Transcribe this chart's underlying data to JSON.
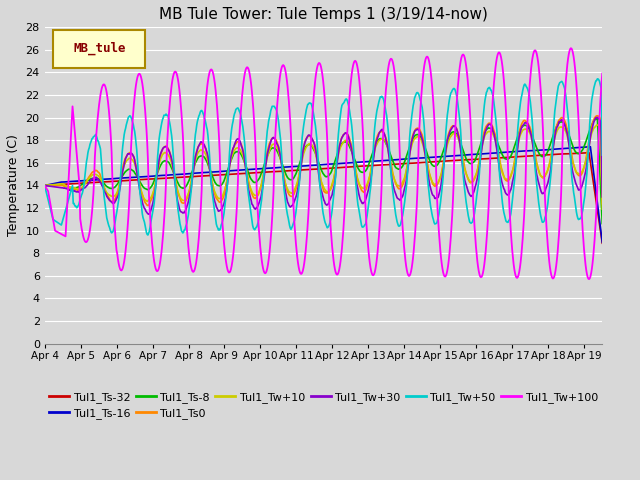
{
  "title": "MB Tule Tower: Tule Temps 1 (3/19/14-now)",
  "ylabel": "Temperature (C)",
  "xlim_days": [
    0,
    15.5
  ],
  "ylim": [
    0,
    28
  ],
  "yticks": [
    0,
    2,
    4,
    6,
    8,
    10,
    12,
    14,
    16,
    18,
    20,
    22,
    24,
    26,
    28
  ],
  "xtick_labels": [
    "Apr 4",
    "Apr 5",
    "Apr 6",
    "Apr 7",
    "Apr 8",
    "Apr 9",
    "Apr 10",
    "Apr 11",
    "Apr 12",
    "Apr 13",
    "Apr 14",
    "Apr 15",
    "Apr 16",
    "Apr 17",
    "Apr 18",
    "Apr 19"
  ],
  "xtick_positions": [
    0,
    1,
    2,
    3,
    4,
    5,
    6,
    7,
    8,
    9,
    10,
    11,
    12,
    13,
    14,
    15
  ],
  "bg_color": "#d8d8d8",
  "plot_bg_color": "#d8d8d8",
  "grid_color": "#ffffff",
  "series_order": [
    "Tul1_Ts-32",
    "Tul1_Ts-16",
    "Tul1_Ts-8",
    "Tul1_Ts0",
    "Tul1_Tw+10",
    "Tul1_Tw+30",
    "Tul1_Tw+50",
    "Tul1_Tw+100"
  ],
  "series": {
    "Tul1_Ts-32": {
      "color": "#cc0000",
      "lw": 1.2
    },
    "Tul1_Ts-16": {
      "color": "#0000cc",
      "lw": 1.2
    },
    "Tul1_Ts-8": {
      "color": "#00bb00",
      "lw": 1.2
    },
    "Tul1_Ts0": {
      "color": "#ff8800",
      "lw": 1.2
    },
    "Tul1_Tw+10": {
      "color": "#cccc00",
      "lw": 1.2
    },
    "Tul1_Tw+30": {
      "color": "#8800cc",
      "lw": 1.2
    },
    "Tul1_Tw+50": {
      "color": "#00cccc",
      "lw": 1.2
    },
    "Tul1_Tw+100": {
      "color": "#ff00ff",
      "lw": 1.3
    }
  },
  "legend_box": {
    "label": "MB_tule",
    "facecolor": "#ffffcc",
    "edgecolor": "#aa8800",
    "textcolor": "#880000"
  },
  "figsize": [
    6.4,
    4.8
  ],
  "dpi": 100
}
